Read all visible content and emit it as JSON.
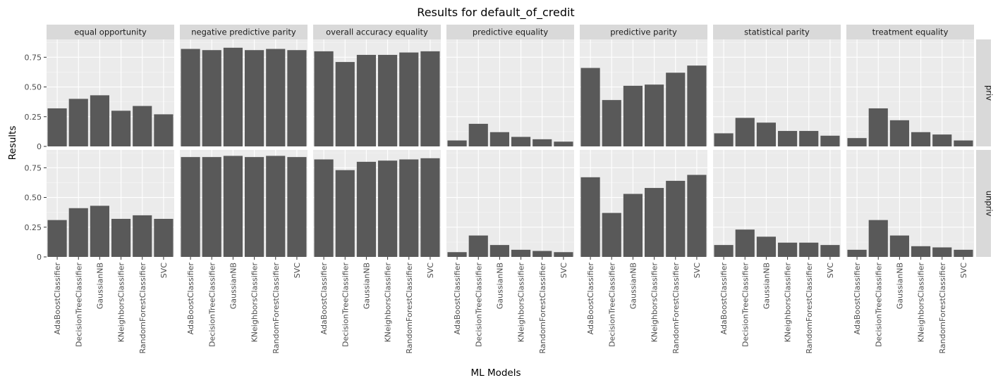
{
  "chart_data": {
    "type": "bar",
    "title": "Results for default_of_credit",
    "xlabel": "ML Models",
    "ylabel": "Results",
    "ylim": [
      0,
      0.9
    ],
    "yticks": [
      0,
      0.25,
      0.5,
      0.75
    ],
    "ytick_labels": [
      "0",
      "0.25",
      "0.50",
      "0.75"
    ],
    "grid": true,
    "bar_color": "#595959",
    "categories": [
      "AdaBoostClassifier",
      "DecisionTreeClassifier",
      "GaussianNB",
      "KNeighborsClassifier",
      "RandomForestClassifier",
      "SVC"
    ],
    "facet_columns": [
      "equal opportunity",
      "negative predictive parity",
      "overall accuracy equality",
      "predictive equality",
      "predictive parity",
      "statistical parity",
      "treatment equality"
    ],
    "facet_rows": [
      "priv",
      "unpriv"
    ],
    "values": {
      "priv": [
        [
          0.32,
          0.4,
          0.43,
          0.3,
          0.34,
          0.27
        ],
        [
          0.82,
          0.81,
          0.83,
          0.81,
          0.82,
          0.81
        ],
        [
          0.8,
          0.71,
          0.77,
          0.77,
          0.79,
          0.8
        ],
        [
          0.05,
          0.19,
          0.12,
          0.08,
          0.06,
          0.04
        ],
        [
          0.66,
          0.39,
          0.51,
          0.52,
          0.62,
          0.68
        ],
        [
          0.11,
          0.24,
          0.2,
          0.13,
          0.13,
          0.09
        ],
        [
          0.07,
          0.32,
          0.22,
          0.12,
          0.1,
          0.05
        ]
      ],
      "unpriv": [
        [
          0.31,
          0.41,
          0.43,
          0.32,
          0.35,
          0.32
        ],
        [
          0.84,
          0.84,
          0.85,
          0.84,
          0.85,
          0.84
        ],
        [
          0.82,
          0.73,
          0.8,
          0.81,
          0.82,
          0.83
        ],
        [
          0.04,
          0.18,
          0.1,
          0.06,
          0.05,
          0.04
        ],
        [
          0.67,
          0.37,
          0.53,
          0.58,
          0.64,
          0.69
        ],
        [
          0.1,
          0.23,
          0.17,
          0.12,
          0.12,
          0.1
        ],
        [
          0.06,
          0.31,
          0.18,
          0.09,
          0.08,
          0.06
        ]
      ]
    }
  }
}
